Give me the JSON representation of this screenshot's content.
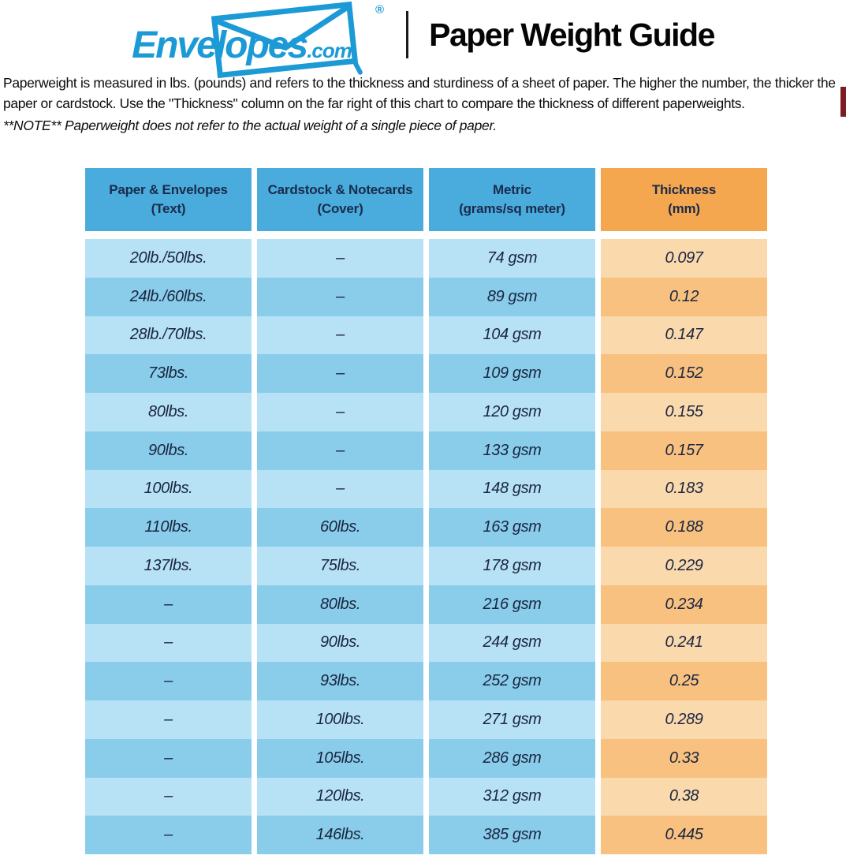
{
  "header": {
    "logo": {
      "brand": "Envelopes",
      "tld": ".com",
      "registered": "®"
    },
    "title": "Paper Weight Guide"
  },
  "intro": {
    "paragraph": "Paperweight is measured in lbs. (pounds) and refers to the thickness and sturdiness of a sheet of paper. The higher the number, the thicker the paper or cardstock. Use the \"Thickness\" column on the far right of this chart to compare the thickness of different paperweights.",
    "note": "**NOTE** Paperweight does not refer to the actual weight of a single piece of paper."
  },
  "table": {
    "headers": [
      {
        "label": "Paper & Envelopes\n(Text)",
        "accent": "blue"
      },
      {
        "label": "Cardstock & Notecards\n(Cover)",
        "accent": "blue"
      },
      {
        "label": "Metric\n(grams/sq meter)",
        "accent": "blue"
      },
      {
        "label": "Thickness\n(mm)",
        "accent": "orange"
      }
    ]
  },
  "chart_data": {
    "type": "table",
    "columns": [
      "Paper & Envelopes (Text)",
      "Cardstock & Notecards (Cover)",
      "Metric (grams/sq meter)",
      "Thickness (mm)"
    ],
    "rows": [
      [
        "20lb./50lbs.",
        "–",
        "74 gsm",
        "0.097"
      ],
      [
        "24lb./60lbs.",
        "–",
        "89 gsm",
        "0.12"
      ],
      [
        "28lb./70lbs.",
        "–",
        "104 gsm",
        "0.147"
      ],
      [
        "73lbs.",
        "–",
        "109 gsm",
        "0.152"
      ],
      [
        "80lbs.",
        "–",
        "120 gsm",
        "0.155"
      ],
      [
        "90lbs.",
        "–",
        "133 gsm",
        "0.157"
      ],
      [
        "100lbs.",
        "–",
        "148 gsm",
        "0.183"
      ],
      [
        "110lbs.",
        "60lbs.",
        "163 gsm",
        "0.188"
      ],
      [
        "137lbs.",
        "75lbs.",
        "178 gsm",
        "0.229"
      ],
      [
        "–",
        "80lbs.",
        "216 gsm",
        "0.234"
      ],
      [
        "–",
        "90lbs.",
        "244 gsm",
        "0.241"
      ],
      [
        "–",
        "93lbs.",
        "252 gsm",
        "0.25"
      ],
      [
        "–",
        "100lbs.",
        "271 gsm",
        "0.289"
      ],
      [
        "–",
        "105lbs.",
        "286 gsm",
        "0.33"
      ],
      [
        "–",
        "120lbs.",
        "312 gsm",
        "0.38"
      ],
      [
        "–",
        "146lbs.",
        "385 gsm",
        "0.445"
      ]
    ]
  },
  "colors": {
    "logo_blue": "#1C9AD6",
    "header_blue": "#49ACDC",
    "header_orange": "#F5A74F",
    "row_blue_light": "#B7E2F5",
    "row_blue_dark": "#89CDEB",
    "row_orange_light": "#FAD9AD",
    "row_orange_dark": "#F8C180",
    "header_text": "#1B2B4B",
    "cell_text": "#1B2640",
    "edge_marker": "#7D1D21"
  }
}
